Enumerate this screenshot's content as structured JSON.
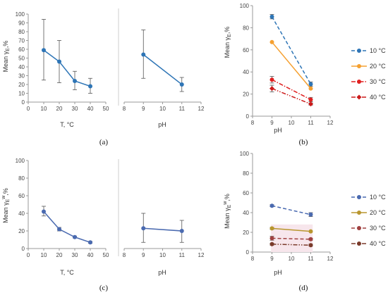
{
  "chart_data": [
    {
      "panel": "a-left",
      "type": "line",
      "caption": "(a)",
      "xlabel": "T, °C",
      "ylabel": "Mean γ_E,%",
      "xlim": [
        0,
        50
      ],
      "ylim": [
        0,
        100
      ],
      "xticks": [
        0,
        10,
        20,
        30,
        40,
        50
      ],
      "yticks": [
        0,
        10,
        20,
        30,
        40,
        50,
        60,
        70,
        80,
        90,
        100
      ],
      "series": [
        {
          "color": "#2e75b6",
          "style": "solid",
          "marker": "circle",
          "x": [
            10,
            20,
            30,
            40
          ],
          "y": [
            59,
            46,
            24,
            18
          ],
          "err_low": [
            25,
            22,
            14,
            10
          ],
          "err_high": [
            94,
            70,
            35,
            27
          ]
        }
      ]
    },
    {
      "panel": "a-right",
      "type": "line",
      "xlabel": "pH",
      "xlim": [
        8,
        12
      ],
      "ylim": [
        0,
        100
      ],
      "xticks": [
        8,
        9,
        10,
        11,
        12
      ],
      "series": [
        {
          "color": "#2e75b6",
          "style": "solid",
          "marker": "circle",
          "x": [
            9,
            11
          ],
          "y": [
            54,
            20
          ],
          "err_low": [
            27,
            12
          ],
          "err_high": [
            82,
            28
          ]
        }
      ]
    },
    {
      "panel": "b",
      "type": "line",
      "caption": "(b)",
      "xlabel": "pH",
      "ylabel": "Mean γ_E,%",
      "xlim": [
        8,
        12
      ],
      "ylim": [
        0,
        100
      ],
      "xticks": [
        8,
        9,
        10,
        11,
        12
      ],
      "yticks": [
        0,
        20,
        40,
        60,
        80,
        100
      ],
      "legend_position": "right",
      "series": [
        {
          "name": "10 °C",
          "color": "#2e75b6",
          "style": "dashed",
          "marker": "circle",
          "x": [
            9,
            11
          ],
          "y": [
            90,
            29
          ],
          "err_low": [
            88,
            27
          ],
          "err_high": [
            92,
            31
          ]
        },
        {
          "name": "20 °C",
          "color": "#f5a030",
          "style": "solid",
          "marker": "circle",
          "x": [
            9,
            11
          ],
          "y": [
            67,
            25
          ],
          "err_low": [
            67,
            25
          ],
          "err_high": [
            67,
            25
          ]
        },
        {
          "name": "30 °C",
          "color": "#e02020",
          "style": "dashdot",
          "marker": "circle",
          "x": [
            9,
            11
          ],
          "y": [
            33,
            15
          ],
          "err_low": [
            30,
            13
          ],
          "err_high": [
            36,
            17
          ]
        },
        {
          "name": "40 °C",
          "color": "#cc1a1a",
          "style": "dashdotdot",
          "marker": "diamond",
          "x": [
            9,
            11
          ],
          "y": [
            25,
            11
          ],
          "err_low": [
            22,
            10
          ],
          "err_high": [
            28,
            12
          ]
        }
      ]
    },
    {
      "panel": "c-left",
      "type": "line",
      "caption": "(c)",
      "xlabel": "T, °C",
      "ylabel": "Mean γ_E^w,%",
      "xlim": [
        0,
        50
      ],
      "ylim": [
        0,
        100
      ],
      "xticks": [
        0,
        10,
        20,
        30,
        40,
        50
      ],
      "yticks": [
        0,
        20,
        40,
        60,
        80,
        100
      ],
      "series": [
        {
          "color": "#4a6ab0",
          "style": "solid",
          "marker": "circle",
          "x": [
            10,
            20,
            30,
            40
          ],
          "y": [
            42,
            22,
            13,
            7
          ],
          "err_low": [
            37,
            20,
            12,
            6
          ],
          "err_high": [
            48,
            24,
            14,
            8
          ]
        }
      ]
    },
    {
      "panel": "c-right",
      "type": "line",
      "xlabel": "pH",
      "xlim": [
        8,
        12
      ],
      "ylim": [
        0,
        100
      ],
      "xticks": [
        8,
        9,
        10,
        11,
        12
      ],
      "series": [
        {
          "color": "#4a6ab0",
          "style": "solid",
          "marker": "circle",
          "x": [
            9,
            11
          ],
          "y": [
            23,
            20
          ],
          "err_low": [
            7,
            7
          ],
          "err_high": [
            40,
            32
          ]
        }
      ]
    },
    {
      "panel": "d",
      "type": "line",
      "caption": "(d)",
      "xlabel": "pH",
      "ylabel": "Mean γ_E^w,%",
      "xlim": [
        8,
        12
      ],
      "ylim": [
        0,
        100
      ],
      "xticks": [
        8,
        9,
        10,
        11,
        12
      ],
      "yticks": [
        0,
        20,
        40,
        60,
        80,
        100
      ],
      "legend_position": "right",
      "series": [
        {
          "name": "10 °C",
          "color": "#4a6ab0",
          "style": "dashed",
          "marker": "circle",
          "x": [
            9,
            11
          ],
          "y": [
            47,
            38
          ],
          "err_low": [
            46,
            36
          ],
          "err_high": [
            48,
            40
          ]
        },
        {
          "name": "20 °C",
          "color": "#b8962e",
          "style": "solid",
          "marker": "circle",
          "x": [
            9,
            11
          ],
          "y": [
            24,
            21
          ],
          "err_low": [
            23,
            21
          ],
          "err_high": [
            25,
            21
          ]
        },
        {
          "name": "30 °C",
          "color": "#a04040",
          "style": "dashed",
          "marker": "circle",
          "x": [
            9,
            11
          ],
          "y": [
            14,
            13
          ],
          "err_low": [
            12,
            12
          ],
          "err_high": [
            16,
            14
          ]
        },
        {
          "name": "40 °C",
          "color": "#7a3a2a",
          "style": "dashdotdot",
          "marker": "circle",
          "x": [
            9,
            11
          ],
          "y": [
            8,
            7
          ],
          "err_low": [
            7,
            6
          ],
          "err_high": [
            9,
            8
          ]
        }
      ]
    }
  ]
}
